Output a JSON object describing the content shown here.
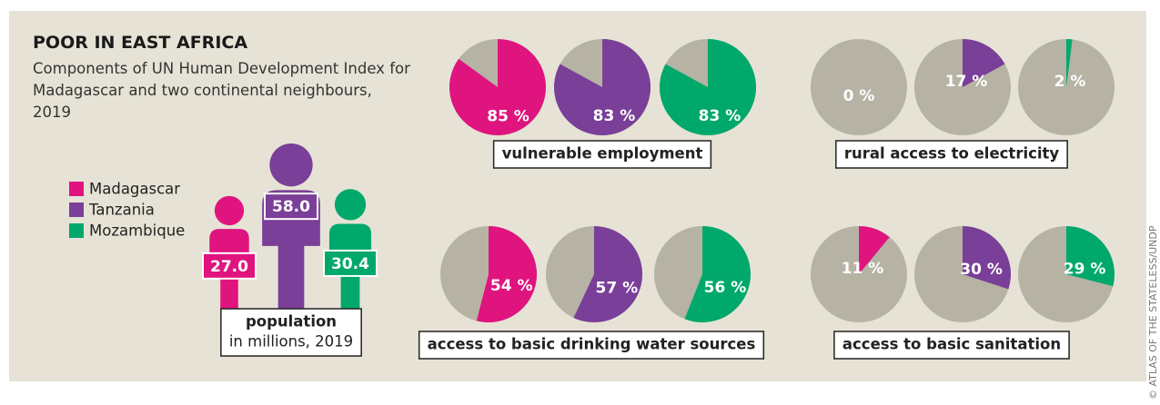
{
  "title": "POOR IN EAST AFRICA",
  "subtitle": "Components of UN Human Development Index for Madagascar and two continental neighbours, 2019",
  "credit": "© ATLAS OF THE STATELESS/UNDP",
  "chart_data": [
    {
      "type": "pictogram",
      "title": "population",
      "subtitle": "in millions, 2019",
      "categories": [
        "Madagascar",
        "Tanzania",
        "Mozambique"
      ],
      "colors": [
        "#e0147f",
        "#7a3f98",
        "#00a86b"
      ],
      "values": [
        27.0,
        58.0,
        30.4
      ],
      "value_labels": [
        "27.0",
        "58.0",
        "30.4"
      ]
    },
    {
      "type": "pie",
      "title": "vulnerable employment",
      "values": [
        85,
        83,
        83
      ],
      "value_labels": [
        "85 %",
        "83 %",
        "83 %"
      ],
      "colors": [
        "#e0147f",
        "#7a3f98",
        "#00a86b"
      ],
      "rest_color": "#b6b3a4"
    },
    {
      "type": "pie",
      "title": "rural access to electricity",
      "values": [
        0,
        17,
        2
      ],
      "value_labels": [
        "0 %",
        "17 %",
        "2 %"
      ],
      "colors": [
        "#e0147f",
        "#7a3f98",
        "#00a86b"
      ],
      "rest_color": "#b6b3a4"
    },
    {
      "type": "pie",
      "title": "access to basic drinking water sources",
      "values": [
        54,
        57,
        56
      ],
      "value_labels": [
        "54 %",
        "57 %",
        "56 %"
      ],
      "colors": [
        "#e0147f",
        "#7a3f98",
        "#00a86b"
      ],
      "rest_color": "#b6b3a4"
    },
    {
      "type": "pie",
      "title": "access to basic sanitation",
      "values": [
        11,
        30,
        29
      ],
      "value_labels": [
        "11 %",
        "30 %",
        "29 %"
      ],
      "colors": [
        "#e0147f",
        "#7a3f98",
        "#00a86b"
      ],
      "rest_color": "#b6b3a4"
    }
  ]
}
